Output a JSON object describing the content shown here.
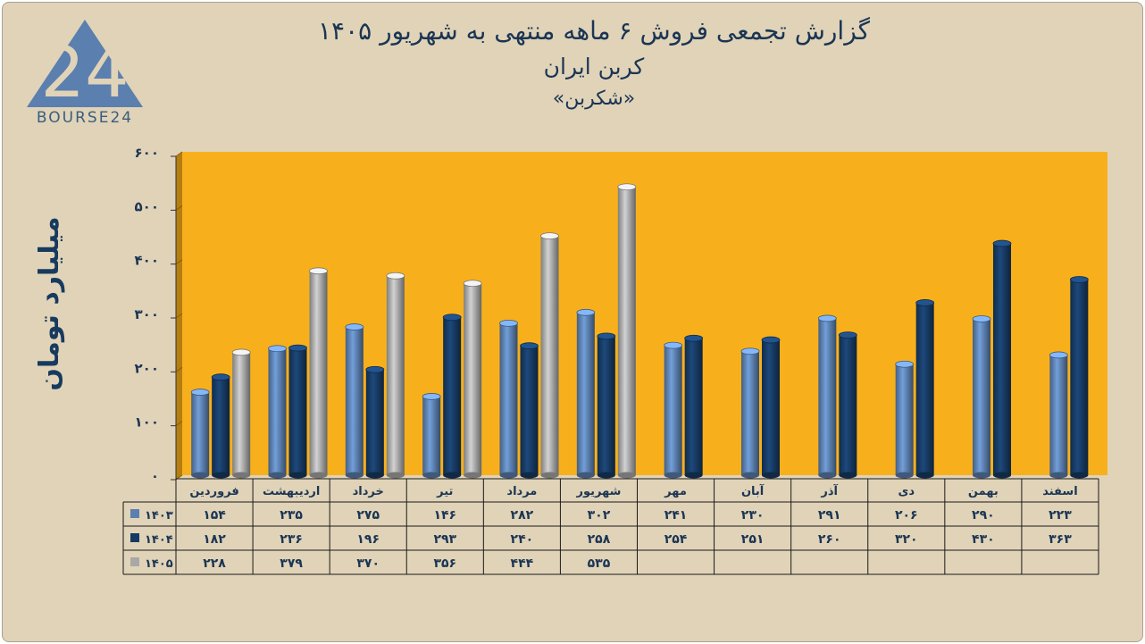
{
  "header": {
    "title": "گزارش تجمعی فروش ۶ ماهه منتهی به شهریور ۱۴۰۵",
    "subtitle": "کربن ایران",
    "ticker": "«شکربن»"
  },
  "logo": {
    "text": "BOURSE24",
    "mark": "24"
  },
  "chart_data": {
    "type": "bar",
    "ylabel": "میلیارد تومان",
    "ylim": [
      0,
      600
    ],
    "yticks": [
      0,
      100,
      200,
      300,
      400,
      500,
      600
    ],
    "ytick_labels": [
      "۰",
      "۱۰۰",
      "۲۰۰",
      "۳۰۰",
      "۴۰۰",
      "۵۰۰",
      "۶۰۰"
    ],
    "categories": [
      "فروردین",
      "اردیبهشت",
      "خرداد",
      "تیر",
      "مرداد",
      "شهریور",
      "مهر",
      "آبان",
      "آذر",
      "دی",
      "بهمن",
      "اسفند"
    ],
    "series": [
      {
        "name": "۱۴۰۳",
        "color": "#5b7fae",
        "values": [
          154,
          235,
          275,
          146,
          282,
          302,
          241,
          230,
          291,
          206,
          290,
          223
        ],
        "labels": [
          "۱۵۴",
          "۲۳۵",
          "۲۷۵",
          "۱۴۶",
          "۲۸۲",
          "۳۰۲",
          "۲۴۱",
          "۲۳۰",
          "۲۹۱",
          "۲۰۶",
          "۲۹۰",
          "۲۲۳"
        ]
      },
      {
        "name": "۱۴۰۴",
        "color": "#173a63",
        "values": [
          182,
          236,
          196,
          293,
          240,
          258,
          254,
          251,
          260,
          320,
          430,
          363
        ],
        "labels": [
          "۱۸۲",
          "۲۳۶",
          "۱۹۶",
          "۲۹۳",
          "۲۴۰",
          "۲۵۸",
          "۲۵۴",
          "۲۵۱",
          "۲۶۰",
          "۳۲۰",
          "۴۳۰",
          "۳۶۳"
        ]
      },
      {
        "name": "۱۴۰۵",
        "color": "#a8a8a8",
        "values": [
          228,
          379,
          370,
          356,
          444,
          535,
          null,
          null,
          null,
          null,
          null,
          null
        ],
        "labels": [
          "۲۲۸",
          "۳۷۹",
          "۳۷۰",
          "۳۵۶",
          "۴۴۴",
          "۵۳۵",
          "",
          "",
          "",
          "",
          "",
          ""
        ]
      }
    ],
    "plot_background": "#f7b01c",
    "grid": true,
    "legend": "data-table"
  }
}
